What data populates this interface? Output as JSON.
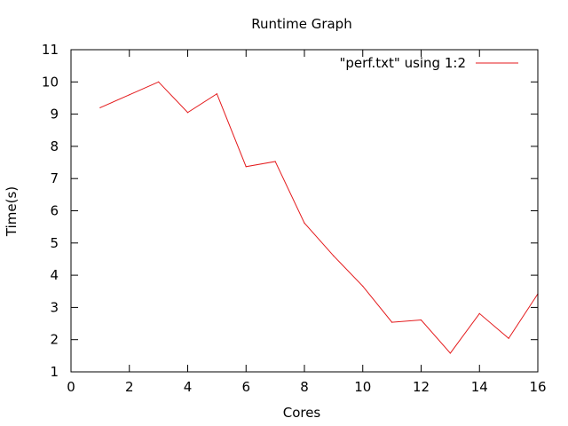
{
  "chart_data": {
    "type": "line",
    "title": "Runtime Graph",
    "xlabel": "Cores",
    "ylabel": "Time(s)",
    "xlim": [
      0,
      16
    ],
    "ylim": [
      1,
      11
    ],
    "xticks": [
      0,
      2,
      4,
      6,
      8,
      10,
      12,
      14,
      16
    ],
    "yticks": [
      1,
      2,
      3,
      4,
      5,
      6,
      7,
      8,
      9,
      10,
      11
    ],
    "grid": false,
    "legend_position": "top-right",
    "series": [
      {
        "name": "\"perf.txt\" using 1:2",
        "color": "#e41a1c",
        "x": [
          1,
          2,
          3,
          4,
          5,
          6,
          7,
          8,
          9,
          10,
          11,
          12,
          13,
          14,
          15,
          16
        ],
        "y": [
          9.2,
          9.6,
          10.0,
          9.05,
          9.63,
          7.37,
          7.53,
          5.62,
          4.6,
          3.66,
          2.54,
          2.61,
          1.58,
          2.81,
          2.04,
          3.42
        ]
      }
    ]
  }
}
